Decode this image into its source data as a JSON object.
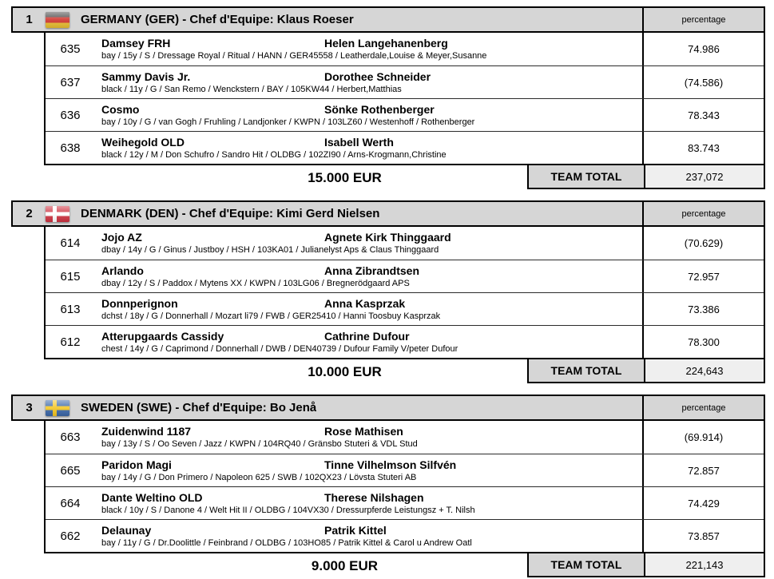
{
  "labels": {
    "percentage": "percentage"
  },
  "colors": {
    "header_bg": "#d6d6d6",
    "total_label_bg": "#d6d6d6",
    "total_value_bg": "#efefef",
    "border": "#000000",
    "flag_germany": [
      "#474747",
      "#cf3028",
      "#e7bd2f"
    ],
    "flag_denmark": [
      "#cf3341",
      "#ffffff"
    ],
    "flag_sweden": [
      "#3a66a7",
      "#f3c520"
    ]
  },
  "teams": [
    {
      "rank": "1",
      "flag": "ger",
      "flag_icon": "germany-flag-icon",
      "title": "GERMANY (GER) - Chef d'Equipe: Klaus Roeser",
      "rows": [
        {
          "no": "635",
          "horse": "Damsey FRH",
          "rider": "Helen Langehanenberg",
          "details": "bay / 15y / S / Dressage Royal / Ritual / HANN / GER45558 / Leatherdale,Louise & Meyer,Susanne",
          "percentage": "74.986"
        },
        {
          "no": "637",
          "horse": "Sammy Davis Jr.",
          "rider": "Dorothee Schneider",
          "details": "black / 11y / G / San Remo / Wenckstern / BAY / 105KW44 / Herbert,Matthias",
          "percentage": "(74.586)"
        },
        {
          "no": "636",
          "horse": "Cosmo",
          "rider": "Sönke Rothenberger",
          "details": "bay / 10y / G / van Gogh / Fruhling / Landjonker / KWPN / 103LZ60 / Westenhoff / Rothenberger",
          "percentage": "78.343"
        },
        {
          "no": "638",
          "horse": "Weihegold OLD",
          "rider": "Isabell Werth",
          "details": "black / 12y / M / Don Schufro / Sandro Hit / OLDBG / 102ZI90 / Arns-Krogmann,Christine",
          "percentage": "83.743"
        }
      ],
      "prize": "15.000 EUR",
      "total_label": "TEAM TOTAL",
      "total": "237,072"
    },
    {
      "rank": "2",
      "flag": "den",
      "flag_icon": "denmark-flag-icon",
      "title": "DENMARK (DEN) - Chef d'Equipe: Kimi Gerd Nielsen",
      "rows": [
        {
          "no": "614",
          "horse": "Jojo AZ",
          "rider": "Agnete Kirk Thinggaard",
          "details": "dbay / 14y / G / Ginus / Justboy / HSH / 103KA01 / Julianelyst Aps & Claus Thinggaard",
          "percentage": "(70.629)"
        },
        {
          "no": "615",
          "horse": "Arlando",
          "rider": "Anna Zibrandtsen",
          "details": "dbay / 12y / S / Paddox / Mytens XX / KWPN / 103LG06 / Bregnerödgaard APS",
          "percentage": "72.957"
        },
        {
          "no": "613",
          "horse": "Donnperignon",
          "rider": "Anna Kasprzak",
          "details": "dchst / 18y / G / Donnerhall / Mozart li79 / FWB / GER25410 / Hanni Toosbuy Kasprzak",
          "percentage": "73.386"
        },
        {
          "no": "612",
          "horse": "Atterupgaards Cassidy",
          "rider": "Cathrine Dufour",
          "details": "chest / 14y / G / Caprimond / Donnerhall / DWB / DEN40739 / Dufour Family V/peter Dufour",
          "percentage": "78.300"
        }
      ],
      "prize": "10.000 EUR",
      "total_label": "TEAM TOTAL",
      "total": "224,643"
    },
    {
      "rank": "3",
      "flag": "swe",
      "flag_icon": "sweden-flag-icon",
      "title": "SWEDEN (SWE) - Chef d'Equipe: Bo Jenå",
      "rows": [
        {
          "no": "663",
          "horse": "Zuidenwind 1187",
          "rider": "Rose Mathisen",
          "details": "bay / 13y / S / Oo Seven / Jazz / KWPN / 104RQ40 / Gränsbo Stuteri & VDL Stud",
          "percentage": "(69.914)"
        },
        {
          "no": "665",
          "horse": "Paridon Magi",
          "rider": "Tinne Vilhelmson Silfvén",
          "details": "bay / 14y / G / Don Primero / Napoleon 625 / SWB / 102QX23 / Lövsta Stuteri AB",
          "percentage": "72.857"
        },
        {
          "no": "664",
          "horse": "Dante Weltino OLD",
          "rider": "Therese Nilshagen",
          "details": "black / 10y / S / Danone 4 / Welt Hit II / OLDBG / 104VX30 / Dressurpferde Leistungsz + T. Nilsh",
          "percentage": "74.429"
        },
        {
          "no": "662",
          "horse": "Delaunay",
          "rider": "Patrik Kittel",
          "details": "bay / 11y / G / Dr.Doolittle / Feinbrand / OLDBG / 103HO85 / Patrik Kittel & Carol u Andrew Oatl",
          "percentage": "73.857"
        }
      ],
      "prize": "9.000 EUR",
      "total_label": "TEAM TOTAL",
      "total": "221,143"
    }
  ]
}
